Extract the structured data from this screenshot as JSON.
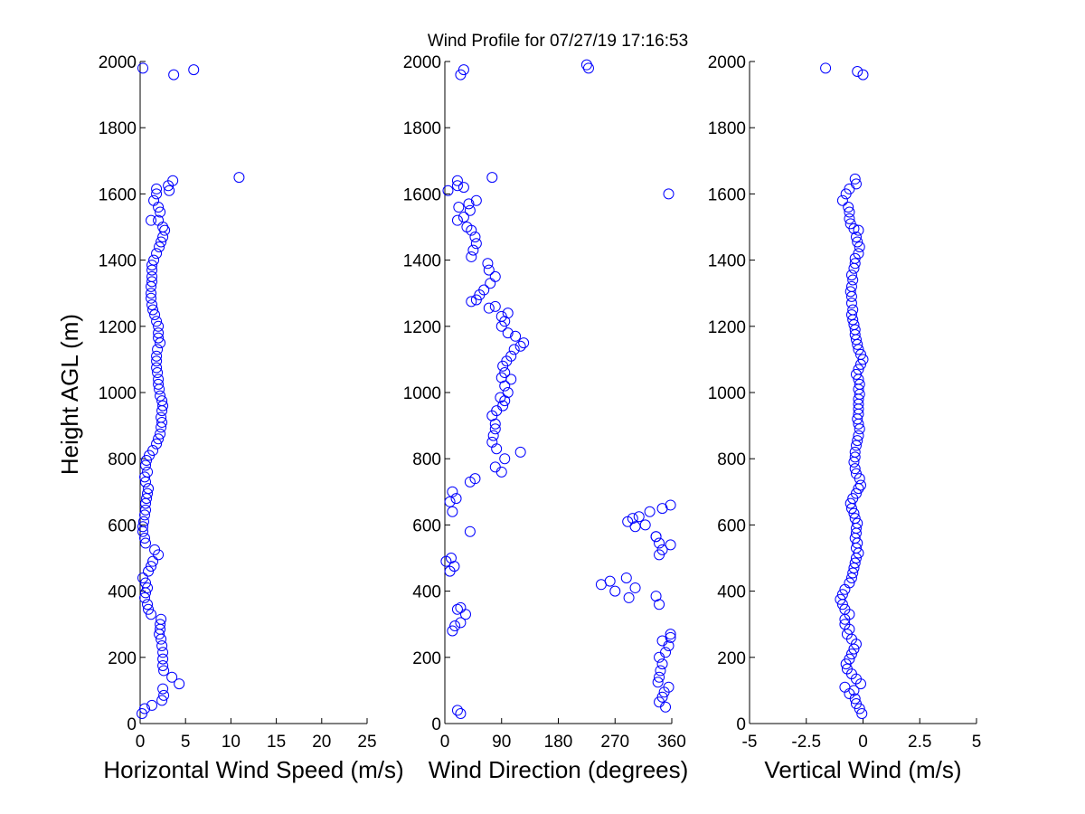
{
  "title": "Wind Profile for  07/27/19 17:16:53",
  "ylabel": "Height AGL (m)",
  "colors": {
    "marker": "#0000ff",
    "axis": "#000000",
    "background": "#ffffff"
  },
  "chart_data": [
    {
      "type": "scatter",
      "id": "speed",
      "xlabel": "Horizontal Wind Speed (m/s)",
      "xlim": [
        0,
        25
      ],
      "ylim": [
        0,
        2000
      ],
      "xticks": [
        0,
        5,
        10,
        15,
        20,
        25
      ],
      "xtick_labels": [
        "0",
        "5",
        "10",
        "15",
        "20",
        "25"
      ],
      "yticks": [
        0,
        200,
        400,
        600,
        800,
        1000,
        1200,
        1400,
        1600,
        1800,
        2000
      ],
      "ytick_labels": [
        "0",
        "200",
        "400",
        "600",
        "800",
        "1000",
        "1200",
        "1400",
        "1600",
        "1800",
        "2000"
      ],
      "points": [
        [
          0.2,
          30
        ],
        [
          0.5,
          45
        ],
        [
          1.3,
          55
        ],
        [
          2.4,
          70
        ],
        [
          2.6,
          85
        ],
        [
          2.5,
          105
        ],
        [
          4.3,
          120
        ],
        [
          3.5,
          140
        ],
        [
          2.6,
          160
        ],
        [
          2.5,
          175
        ],
        [
          2.5,
          195
        ],
        [
          2.5,
          215
        ],
        [
          2.4,
          235
        ],
        [
          2.3,
          255
        ],
        [
          2.1,
          270
        ],
        [
          2.2,
          285
        ],
        [
          2.2,
          300
        ],
        [
          2.3,
          315
        ],
        [
          1.2,
          330
        ],
        [
          0.9,
          345
        ],
        [
          0.8,
          360
        ],
        [
          0.5,
          380
        ],
        [
          0.6,
          395
        ],
        [
          0.8,
          410
        ],
        [
          0.6,
          425
        ],
        [
          0.3,
          440
        ],
        [
          0.9,
          460
        ],
        [
          1.2,
          475
        ],
        [
          1.4,
          490
        ],
        [
          2.0,
          510
        ],
        [
          1.6,
          525
        ],
        [
          0.6,
          545
        ],
        [
          0.5,
          560
        ],
        [
          0.3,
          580
        ],
        [
          0.3,
          595
        ],
        [
          0.4,
          610
        ],
        [
          0.5,
          630
        ],
        [
          0.6,
          645
        ],
        [
          0.6,
          665
        ],
        [
          0.7,
          680
        ],
        [
          0.8,
          695
        ],
        [
          0.9,
          710
        ],
        [
          0.6,
          730
        ],
        [
          0.5,
          745
        ],
        [
          0.8,
          760
        ],
        [
          0.6,
          780
        ],
        [
          0.7,
          795
        ],
        [
          1.0,
          810
        ],
        [
          1.4,
          825
        ],
        [
          1.8,
          845
        ],
        [
          2.0,
          860
        ],
        [
          2.2,
          875
        ],
        [
          2.3,
          895
        ],
        [
          2.4,
          910
        ],
        [
          2.3,
          925
        ],
        [
          2.4,
          945
        ],
        [
          2.5,
          960
        ],
        [
          2.4,
          975
        ],
        [
          2.2,
          990
        ],
        [
          2.1,
          1010
        ],
        [
          2.0,
          1025
        ],
        [
          2.0,
          1040
        ],
        [
          1.9,
          1060
        ],
        [
          1.8,
          1075
        ],
        [
          1.8,
          1095
        ],
        [
          1.8,
          1110
        ],
        [
          1.9,
          1130
        ],
        [
          2.2,
          1150
        ],
        [
          2.0,
          1165
        ],
        [
          2.0,
          1180
        ],
        [
          2.0,
          1200
        ],
        [
          1.8,
          1215
        ],
        [
          1.6,
          1235
        ],
        [
          1.4,
          1250
        ],
        [
          1.3,
          1265
        ],
        [
          1.2,
          1285
        ],
        [
          1.2,
          1300
        ],
        [
          1.2,
          1320
        ],
        [
          1.3,
          1335
        ],
        [
          1.3,
          1350
        ],
        [
          1.3,
          1370
        ],
        [
          1.3,
          1385
        ],
        [
          1.5,
          1400
        ],
        [
          1.8,
          1420
        ],
        [
          2.1,
          1440
        ],
        [
          2.3,
          1455
        ],
        [
          2.5,
          1470
        ],
        [
          2.7,
          1490
        ],
        [
          2.5,
          1500
        ],
        [
          2.0,
          1520
        ],
        [
          1.2,
          1520
        ],
        [
          2.2,
          1545
        ],
        [
          2.0,
          1560
        ],
        [
          1.5,
          1580
        ],
        [
          1.8,
          1600
        ],
        [
          1.8,
          1615
        ],
        [
          3.2,
          1610
        ],
        [
          3.1,
          1625
        ],
        [
          3.6,
          1640
        ],
        [
          10.9,
          1650
        ],
        [
          3.7,
          1960
        ],
        [
          0.3,
          1980
        ],
        [
          5.9,
          1975
        ]
      ]
    },
    {
      "type": "scatter",
      "id": "direction",
      "xlabel": "Wind Direction (degrees)",
      "xlim": [
        0,
        360
      ],
      "ylim": [
        0,
        2000
      ],
      "xticks": [
        0,
        90,
        180,
        270,
        360
      ],
      "xtick_labels": [
        "0",
        "90",
        "180",
        "270",
        "360"
      ],
      "yticks": [
        0,
        200,
        400,
        600,
        800,
        1000,
        1200,
        1400,
        1600,
        1800,
        2000
      ],
      "ytick_labels": [
        "0",
        "200",
        "400",
        "600",
        "800",
        "1000",
        "1200",
        "1400",
        "1600",
        "1800",
        "2000"
      ],
      "points": [
        [
          350,
          50
        ],
        [
          340,
          65
        ],
        [
          345,
          80
        ],
        [
          348,
          95
        ],
        [
          355,
          110
        ],
        [
          338,
          125
        ],
        [
          340,
          140
        ],
        [
          342,
          160
        ],
        [
          345,
          180
        ],
        [
          340,
          200
        ],
        [
          350,
          215
        ],
        [
          355,
          235
        ],
        [
          345,
          250
        ],
        [
          358,
          260
        ],
        [
          358,
          270
        ],
        [
          340,
          360
        ],
        [
          335,
          385
        ],
        [
          248,
          420
        ],
        [
          262,
          430
        ],
        [
          302,
          410
        ],
        [
          270,
          400
        ],
        [
          292,
          380
        ],
        [
          288,
          440
        ],
        [
          345,
          525
        ],
        [
          358,
          540
        ],
        [
          340,
          545
        ],
        [
          335,
          565
        ],
        [
          340,
          510
        ],
        [
          290,
          610
        ],
        [
          302,
          595
        ],
        [
          308,
          625
        ],
        [
          298,
          620
        ],
        [
          318,
          600
        ],
        [
          325,
          640
        ],
        [
          345,
          650
        ],
        [
          358,
          660
        ],
        [
          335,
          565
        ],
        [
          12,
          280
        ],
        [
          16,
          295
        ],
        [
          25,
          305
        ],
        [
          33,
          330
        ],
        [
          20,
          345
        ],
        [
          25,
          350
        ],
        [
          8,
          460
        ],
        [
          15,
          475
        ],
        [
          10,
          500
        ],
        [
          2,
          490
        ],
        [
          12,
          640
        ],
        [
          18,
          680
        ],
        [
          12,
          700
        ],
        [
          8,
          670
        ],
        [
          40,
          580
        ],
        [
          40,
          730
        ],
        [
          48,
          740
        ],
        [
          80,
          775
        ],
        [
          90,
          760
        ],
        [
          95,
          800
        ],
        [
          120,
          820
        ],
        [
          82,
          830
        ],
        [
          75,
          850
        ],
        [
          77,
          870
        ],
        [
          80,
          890
        ],
        [
          80,
          905
        ],
        [
          75,
          930
        ],
        [
          82,
          945
        ],
        [
          92,
          960
        ],
        [
          95,
          975
        ],
        [
          88,
          985
        ],
        [
          100,
          1000
        ],
        [
          95,
          1020
        ],
        [
          90,
          1045
        ],
        [
          105,
          1040
        ],
        [
          95,
          1060
        ],
        [
          92,
          1080
        ],
        [
          98,
          1095
        ],
        [
          105,
          1110
        ],
        [
          110,
          1130
        ],
        [
          120,
          1140
        ],
        [
          125,
          1150
        ],
        [
          112,
          1170
        ],
        [
          100,
          1180
        ],
        [
          90,
          1200
        ],
        [
          95,
          1215
        ],
        [
          90,
          1230
        ],
        [
          100,
          1240
        ],
        [
          80,
          1260
        ],
        [
          70,
          1255
        ],
        [
          42,
          1275
        ],
        [
          50,
          1280
        ],
        [
          55,
          1295
        ],
        [
          62,
          1310
        ],
        [
          72,
          1330
        ],
        [
          80,
          1350
        ],
        [
          70,
          1370
        ],
        [
          68,
          1390
        ],
        [
          42,
          1410
        ],
        [
          45,
          1430
        ],
        [
          50,
          1450
        ],
        [
          48,
          1470
        ],
        [
          42,
          1490
        ],
        [
          35,
          1500
        ],
        [
          20,
          1520
        ],
        [
          30,
          1530
        ],
        [
          40,
          1550
        ],
        [
          50,
          1580
        ],
        [
          38,
          1570
        ],
        [
          22,
          1560
        ],
        [
          30,
          1620
        ],
        [
          5,
          1610
        ],
        [
          20,
          1640
        ],
        [
          20,
          1625
        ],
        [
          75,
          1650
        ],
        [
          355,
          1600
        ],
        [
          25,
          1960
        ],
        [
          30,
          1975
        ],
        [
          225,
          1990
        ],
        [
          228,
          1980
        ],
        [
          20,
          40
        ],
        [
          25,
          30
        ]
      ]
    },
    {
      "type": "scatter",
      "id": "vertical",
      "xlabel": "Vertical Wind (m/s)",
      "xlim": [
        -5,
        5
      ],
      "ylim": [
        0,
        2000
      ],
      "xticks": [
        -5,
        -2.5,
        0,
        2.5,
        5
      ],
      "xtick_labels": [
        "-5",
        "-2.5",
        "0",
        "2.5",
        "5"
      ],
      "yticks": [
        0,
        200,
        400,
        600,
        800,
        1000,
        1200,
        1400,
        1600,
        1800,
        2000
      ],
      "ytick_labels": [
        "0",
        "200",
        "400",
        "600",
        "800",
        "1000",
        "1200",
        "1400",
        "1600",
        "1800",
        "2000"
      ],
      "points": [
        [
          -0.05,
          30
        ],
        [
          -0.15,
          45
        ],
        [
          -0.3,
          60
        ],
        [
          -0.35,
          75
        ],
        [
          -0.6,
          90
        ],
        [
          -0.4,
          100
        ],
        [
          -0.8,
          110
        ],
        [
          -0.1,
          120
        ],
        [
          -0.3,
          135
        ],
        [
          -0.5,
          150
        ],
        [
          -0.7,
          165
        ],
        [
          -0.75,
          180
        ],
        [
          -0.6,
          195
        ],
        [
          -0.5,
          210
        ],
        [
          -0.4,
          225
        ],
        [
          -0.3,
          240
        ],
        [
          -0.5,
          255
        ],
        [
          -0.7,
          270
        ],
        [
          -0.6,
          285
        ],
        [
          -0.8,
          300
        ],
        [
          -0.8,
          315
        ],
        [
          -0.6,
          330
        ],
        [
          -0.8,
          345
        ],
        [
          -0.9,
          360
        ],
        [
          -1.0,
          375
        ],
        [
          -0.9,
          390
        ],
        [
          -0.8,
          405
        ],
        [
          -0.6,
          425
        ],
        [
          -0.5,
          440
        ],
        [
          -0.45,
          455
        ],
        [
          -0.4,
          470
        ],
        [
          -0.35,
          485
        ],
        [
          -0.3,
          500
        ],
        [
          -0.2,
          515
        ],
        [
          -0.3,
          530
        ],
        [
          -0.25,
          545
        ],
        [
          -0.35,
          560
        ],
        [
          -0.3,
          575
        ],
        [
          -0.3,
          590
        ],
        [
          -0.25,
          605
        ],
        [
          -0.35,
          620
        ],
        [
          -0.4,
          635
        ],
        [
          -0.5,
          650
        ],
        [
          -0.55,
          665
        ],
        [
          -0.45,
          680
        ],
        [
          -0.3,
          695
        ],
        [
          -0.2,
          710
        ],
        [
          -0.1,
          720
        ],
        [
          -0.15,
          740
        ],
        [
          -0.3,
          755
        ],
        [
          -0.35,
          770
        ],
        [
          -0.4,
          790
        ],
        [
          -0.35,
          805
        ],
        [
          -0.35,
          820
        ],
        [
          -0.3,
          840
        ],
        [
          -0.25,
          855
        ],
        [
          -0.2,
          870
        ],
        [
          -0.15,
          890
        ],
        [
          -0.2,
          905
        ],
        [
          -0.25,
          920
        ],
        [
          -0.2,
          935
        ],
        [
          -0.2,
          950
        ],
        [
          -0.2,
          965
        ],
        [
          -0.2,
          980
        ],
        [
          -0.15,
          995
        ],
        [
          -0.2,
          1010
        ],
        [
          -0.15,
          1025
        ],
        [
          -0.2,
          1040
        ],
        [
          -0.3,
          1055
        ],
        [
          -0.2,
          1070
        ],
        [
          -0.1,
          1085
        ],
        [
          0.0,
          1100
        ],
        [
          -0.1,
          1115
        ],
        [
          -0.2,
          1130
        ],
        [
          -0.25,
          1145
        ],
        [
          -0.3,
          1160
        ],
        [
          -0.35,
          1175
        ],
        [
          -0.35,
          1190
        ],
        [
          -0.4,
          1205
        ],
        [
          -0.45,
          1220
        ],
        [
          -0.5,
          1235
        ],
        [
          -0.45,
          1250
        ],
        [
          -0.5,
          1270
        ],
        [
          -0.5,
          1290
        ],
        [
          -0.55,
          1305
        ],
        [
          -0.5,
          1320
        ],
        [
          -0.45,
          1340
        ],
        [
          -0.5,
          1355
        ],
        [
          -0.4,
          1375
        ],
        [
          -0.35,
          1390
        ],
        [
          -0.35,
          1405
        ],
        [
          -0.2,
          1420
        ],
        [
          -0.15,
          1440
        ],
        [
          -0.25,
          1455
        ],
        [
          -0.3,
          1470
        ],
        [
          -0.2,
          1490
        ],
        [
          -0.4,
          1495
        ],
        [
          -0.55,
          1510
        ],
        [
          -0.6,
          1525
        ],
        [
          -0.6,
          1545
        ],
        [
          -0.65,
          1560
        ],
        [
          -0.9,
          1580
        ],
        [
          -0.75,
          1600
        ],
        [
          -0.6,
          1615
        ],
        [
          -0.3,
          1630
        ],
        [
          -0.35,
          1645
        ],
        [
          -1.65,
          1980
        ],
        [
          -0.25,
          1970
        ],
        [
          0.0,
          1960
        ]
      ]
    }
  ]
}
